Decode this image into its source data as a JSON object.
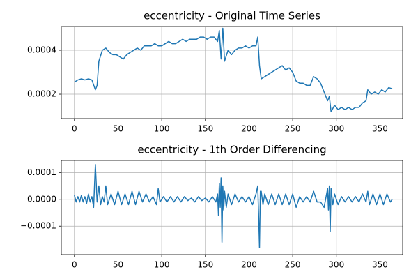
{
  "chart_data": [
    {
      "type": "line",
      "title": "eccentricity - Original Time Series",
      "grid": true,
      "xlim": [
        -15,
        376
      ],
      "xticks": [
        0,
        50,
        100,
        150,
        200,
        250,
        300,
        350
      ],
      "ylim": [
        8.9e-05,
        0.000508
      ],
      "yticks": [
        0.0002,
        0.0004
      ],
      "x": [
        0,
        4,
        8,
        12,
        16,
        20,
        24,
        26,
        28,
        32,
        36,
        40,
        44,
        48,
        52,
        56,
        60,
        64,
        68,
        72,
        76,
        80,
        84,
        88,
        92,
        96,
        100,
        104,
        108,
        112,
        116,
        120,
        124,
        128,
        132,
        136,
        140,
        144,
        148,
        152,
        156,
        160,
        164,
        166,
        168,
        170,
        172,
        176,
        180,
        184,
        188,
        192,
        196,
        200,
        204,
        208,
        210,
        212,
        214,
        218,
        222,
        226,
        230,
        234,
        238,
        242,
        246,
        250,
        254,
        258,
        262,
        266,
        270,
        274,
        278,
        282,
        286,
        290,
        292,
        294,
        298,
        302,
        306,
        310,
        314,
        318,
        322,
        326,
        330,
        334,
        336,
        340,
        344,
        348,
        352,
        356,
        360,
        364
      ],
      "series": [
        {
          "color": "#1f77b4",
          "values": [
            0.000255,
            0.000265,
            0.00027,
            0.000265,
            0.00027,
            0.000265,
            0.00022,
            0.00024,
            0.00035,
            0.0004,
            0.00041,
            0.00039,
            0.00038,
            0.00038,
            0.00037,
            0.00036,
            0.00038,
            0.00039,
            0.0004,
            0.00041,
            0.0004,
            0.00042,
            0.00042,
            0.00042,
            0.00043,
            0.00042,
            0.00042,
            0.00043,
            0.00044,
            0.00043,
            0.00043,
            0.00044,
            0.00045,
            0.00044,
            0.00045,
            0.00045,
            0.00045,
            0.00046,
            0.00046,
            0.00045,
            0.00046,
            0.00046,
            0.00044,
            0.00049,
            0.00036,
            0.0005,
            0.00035,
            0.0004,
            0.00038,
            0.0004,
            0.00041,
            0.00041,
            0.00042,
            0.00041,
            0.00042,
            0.00042,
            0.00046,
            0.00033,
            0.00027,
            0.00028,
            0.00029,
            0.0003,
            0.00031,
            0.00032,
            0.00033,
            0.00031,
            0.00032,
            0.0003,
            0.00026,
            0.00025,
            0.00025,
            0.00024,
            0.00024,
            0.00028,
            0.00027,
            0.00025,
            0.00021,
            0.00017,
            0.00019,
            0.00012,
            0.00015,
            0.00013,
            0.00014,
            0.00013,
            0.00014,
            0.00013,
            0.00014,
            0.00014,
            0.00016,
            0.00017,
            0.00022,
            0.0002,
            0.00021,
            0.0002,
            0.00022,
            0.00021,
            0.00023,
            0.000225
          ]
        }
      ]
    },
    {
      "type": "line",
      "title": "eccentricity - 1th Order Differencing",
      "grid": true,
      "xlim": [
        -15,
        376
      ],
      "xticks": [
        0,
        50,
        100,
        150,
        200,
        250,
        300,
        350
      ],
      "ylim": [
        -0.000206,
        0.000145
      ],
      "yticks": [
        {
          "value": -0.0001,
          "label": "−0.0001"
        },
        {
          "value": 0,
          "label": "0.0000"
        },
        {
          "value": 0.0001,
          "label": "0.0001"
        }
      ],
      "x": [
        0,
        2,
        4,
        6,
        8,
        10,
        12,
        14,
        16,
        18,
        20,
        22,
        24,
        26,
        28,
        30,
        32,
        34,
        36,
        38,
        42,
        46,
        50,
        54,
        58,
        62,
        66,
        70,
        74,
        78,
        82,
        86,
        90,
        94,
        96,
        98,
        102,
        106,
        110,
        114,
        118,
        122,
        126,
        130,
        134,
        138,
        142,
        146,
        150,
        154,
        158,
        162,
        164,
        165,
        166,
        167,
        168,
        169,
        170,
        171,
        172,
        174,
        176,
        180,
        184,
        188,
        192,
        196,
        200,
        204,
        208,
        210,
        211,
        212,
        213,
        214,
        216,
        218,
        222,
        226,
        230,
        234,
        238,
        242,
        246,
        250,
        254,
        258,
        262,
        266,
        270,
        274,
        278,
        282,
        286,
        290,
        291,
        292,
        293,
        294,
        296,
        298,
        302,
        306,
        310,
        314,
        318,
        322,
        326,
        330,
        334,
        336,
        338,
        342,
        346,
        350,
        354,
        358,
        362,
        364
      ],
      "series": [
        {
          "color": "#1f77b4",
          "values": [
            1.5e-05,
            -1e-05,
            1e-05,
            -1e-05,
            1.5e-05,
            -1e-05,
            1e-05,
            -1.5e-05,
            2e-05,
            -1e-05,
            1e-05,
            -3e-05,
            0.00013,
            -1e-05,
            5e-05,
            -2e-05,
            1e-05,
            -1e-05,
            5e-05,
            -2e-05,
            2e-05,
            -2e-05,
            3e-05,
            -2e-05,
            2e-05,
            -2e-05,
            3e-05,
            -2e-05,
            3e-05,
            -1e-05,
            2e-05,
            -1e-05,
            1e-05,
            -2e-05,
            4e-05,
            -1e-05,
            1e-05,
            -1e-05,
            1e-05,
            -1e-05,
            1e-05,
            -1e-05,
            1e-05,
            -5e-06,
            5e-06,
            -1e-05,
            1e-05,
            -5e-06,
            5e-06,
            -1e-05,
            1e-05,
            -1e-05,
            2e-05,
            -6e-05,
            6e-05,
            -3e-05,
            8e-05,
            -0.00016,
            5e-05,
            -4e-05,
            3e-05,
            -3e-05,
            2e-05,
            -2e-05,
            2e-05,
            -1e-05,
            1e-05,
            -1e-05,
            1e-05,
            -2e-05,
            2e-05,
            5e-05,
            -6e-05,
            -0.00018,
            3e-05,
            3e-05,
            -2e-05,
            2e-05,
            -2e-05,
            2e-05,
            -2e-05,
            2e-05,
            -2e-05,
            2e-05,
            -2e-05,
            2e-05,
            -3e-05,
            1e-05,
            -1e-05,
            1e-05,
            -1e-05,
            3e-05,
            -1e-05,
            -1e-05,
            -3e-05,
            4e-05,
            -4e-05,
            5e-05,
            -0.00012,
            4e-05,
            -2e-05,
            2e-05,
            -2e-05,
            1e-05,
            -1e-05,
            1e-05,
            -1e-05,
            1e-05,
            -1e-05,
            2e-05,
            -1e-05,
            3e-05,
            -2e-05,
            2e-05,
            -2e-05,
            2e-05,
            -2e-05,
            2e-05,
            -1e-05,
            0
          ]
        }
      ]
    }
  ]
}
